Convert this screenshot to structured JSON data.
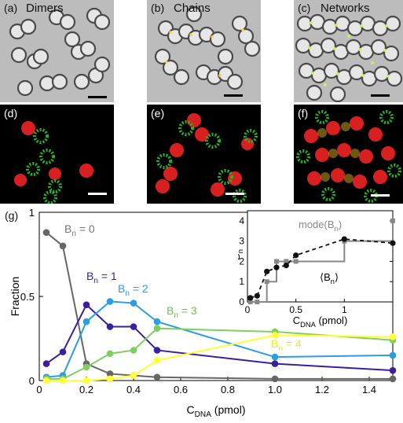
{
  "figure": {
    "panels_top": [
      {
        "label": "(a)",
        "title": "Dimers"
      },
      {
        "label": "(b)",
        "title": "Chains"
      },
      {
        "label": "(c)",
        "title": "Networks"
      }
    ],
    "panels_mid": [
      {
        "label": "(d)"
      },
      {
        "label": "(e)"
      },
      {
        "label": "(f)"
      }
    ],
    "main_label": "(g)"
  },
  "chart_data": [
    {
      "type": "line",
      "xlabel": "C_DNA (pmol)",
      "ylabel": "Fraction",
      "xlim": [
        0,
        1.5
      ],
      "ylim": [
        0,
        1
      ],
      "xticks": [
        "0",
        "0.2",
        "0.4",
        "0.6",
        "0.8",
        "1.0",
        "1.2",
        "1.4"
      ],
      "yticks": [
        "0",
        "0.5",
        "1"
      ],
      "x": [
        0.03,
        0.1,
        0.2,
        0.3,
        0.4,
        0.5,
        1.0,
        1.5
      ],
      "series": [
        {
          "name": "B_n = 0",
          "color": "#666666",
          "label_color": "#777777",
          "values": [
            0.88,
            0.8,
            0.1,
            0.04,
            0.03,
            0.02,
            0.01,
            0.01
          ]
        },
        {
          "name": "B_n = 1",
          "color": "#3b1f9c",
          "label_color": "#3b1f9c",
          "values": [
            0.1,
            0.17,
            0.45,
            0.32,
            0.32,
            0.18,
            0.1,
            0.06
          ]
        },
        {
          "name": "B_n = 2",
          "color": "#2c9de0",
          "label_color": "#2c9de0",
          "values": [
            0.02,
            0.03,
            0.35,
            0.47,
            0.46,
            0.35,
            0.14,
            0.15
          ]
        },
        {
          "name": "B_n = 3",
          "color": "#7fcf60",
          "label_color": "#6cc34a",
          "values": [
            0.01,
            0.01,
            0.08,
            0.16,
            0.18,
            0.31,
            0.29,
            0.24
          ]
        },
        {
          "name": "B_n = 4",
          "color": "#ffff33",
          "label_color": "#f0f000",
          "values": [
            0.0,
            0.0,
            0.0,
            0.01,
            0.03,
            0.12,
            0.27,
            0.26
          ]
        }
      ],
      "grid": false
    },
    {
      "type": "line",
      "xlabel": "C_DNA (pmol)",
      "ylabel": "B_n",
      "xlim": [
        0,
        1.5
      ],
      "ylim": [
        0,
        4.5
      ],
      "xticks": [
        "0",
        "0.5",
        "1"
      ],
      "yticks": [
        "0",
        "1",
        "2",
        "3",
        "4"
      ],
      "series": [
        {
          "name": "mode(B_n)",
          "color": "#888888",
          "x": [
            0.03,
            0.1,
            0.2,
            0.3,
            0.4,
            0.5,
            1.0,
            1.5
          ],
          "values": [
            0,
            0,
            1,
            2,
            2,
            2,
            3,
            4
          ]
        },
        {
          "name": "⟨B_n⟩",
          "color": "#111111",
          "x": [
            0.03,
            0.1,
            0.2,
            0.3,
            0.4,
            0.5,
            1.0,
            1.5
          ],
          "values": [
            0.2,
            0.3,
            1.5,
            1.7,
            1.8,
            2.3,
            3.1,
            2.9
          ]
        }
      ]
    }
  ]
}
